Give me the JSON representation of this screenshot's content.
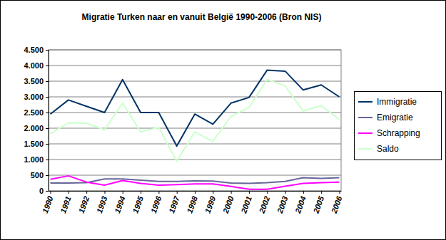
{
  "chart_data": {
    "type": "line",
    "title": "Migratie Turken naar en vanuit België 1990-2006 (Bron NIS)",
    "categories": [
      "1990",
      "1991",
      "1992",
      "1993",
      "1994",
      "1995",
      "1996",
      "1997",
      "1998",
      "1999",
      "2000",
      "2001",
      "2002",
      "2003",
      "2004",
      "2005",
      "2006"
    ],
    "series": [
      {
        "name": "Immigratie",
        "color": "#003366",
        "values": [
          2450,
          2900,
          2700,
          2500,
          3550,
          2500,
          2500,
          1430,
          2450,
          2130,
          2800,
          2980,
          3850,
          3820,
          3220,
          3380,
          3000
        ]
      },
      {
        "name": "Emigratie",
        "color": "#666699",
        "values": [
          250,
          250,
          260,
          380,
          380,
          340,
          300,
          300,
          320,
          310,
          250,
          240,
          260,
          300,
          420,
          400,
          420
        ]
      },
      {
        "name": "Schrapping",
        "color": "#ff00ff",
        "values": [
          370,
          480,
          280,
          180,
          330,
          240,
          180,
          200,
          220,
          220,
          140,
          50,
          50,
          150,
          240,
          260,
          280
        ]
      },
      {
        "name": "Saldo",
        "color": "#ccffcc",
        "values": [
          1820,
          2170,
          2160,
          1950,
          2800,
          1880,
          2020,
          950,
          1880,
          1580,
          2380,
          2660,
          3550,
          3350,
          2550,
          2720,
          2280
        ]
      }
    ],
    "ylim": [
      0,
      4500
    ],
    "yticks": [
      0,
      500,
      {
        "value": 1000,
        "label": "1.000"
      },
      {
        "value": 1500,
        "label": "1.500"
      },
      {
        "value": 2000,
        "label": "2.000"
      },
      {
        "value": 2500,
        "label": "2.500"
      },
      {
        "value": 3000,
        "label": "3.000"
      },
      {
        "value": 3500,
        "label": "3.500"
      },
      {
        "value": 4000,
        "label": "4.000"
      },
      {
        "value": 4500,
        "label": "4.500"
      }
    ],
    "grid": true,
    "legend": "right"
  }
}
